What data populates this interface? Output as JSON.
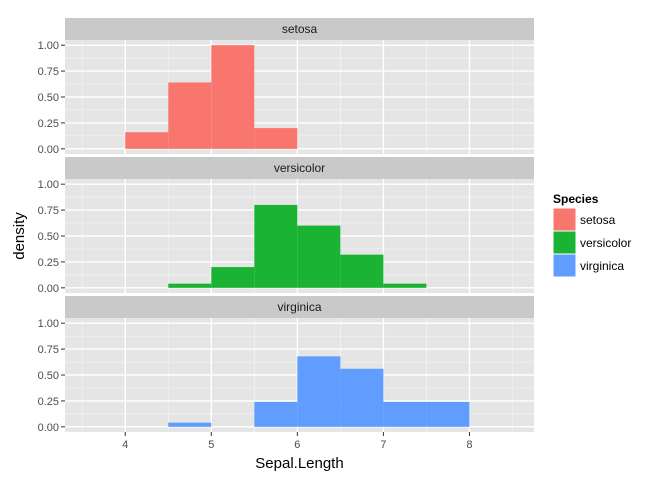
{
  "chart_data": {
    "type": "bar",
    "xlabel": "Sepal.Length",
    "ylabel": "density",
    "xlim": [
      3.3,
      8.75
    ],
    "ylim": [
      -0.05,
      1.05
    ],
    "x_ticks": [
      4,
      5,
      6,
      7,
      8
    ],
    "y_ticks": [
      0.0,
      0.25,
      0.5,
      0.75,
      1.0
    ],
    "y_tick_labels": [
      "0.00",
      "0.25",
      "0.50",
      "0.75",
      "1.00"
    ],
    "bin_edges": [
      4.0,
      4.5,
      5.0,
      5.5,
      6.0,
      6.5,
      7.0,
      7.5,
      8.0
    ],
    "grid": true,
    "legend": {
      "title": "Species",
      "position": "right",
      "entries": [
        "setosa",
        "versicolor",
        "virginica"
      ]
    },
    "series": [
      {
        "name": "setosa",
        "color": "#F8766D",
        "values": [
          0.16,
          0.64,
          1.0,
          0.2,
          0,
          0,
          0,
          0
        ]
      },
      {
        "name": "versicolor",
        "color": "#1BB333",
        "values": [
          0,
          0.04,
          0.2,
          0.8,
          0.6,
          0.32,
          0.04,
          0
        ]
      },
      {
        "name": "virginica",
        "color": "#619CFF",
        "values": [
          0,
          0.04,
          0,
          0.24,
          0.68,
          0.56,
          0.24,
          0.24
        ]
      }
    ]
  }
}
